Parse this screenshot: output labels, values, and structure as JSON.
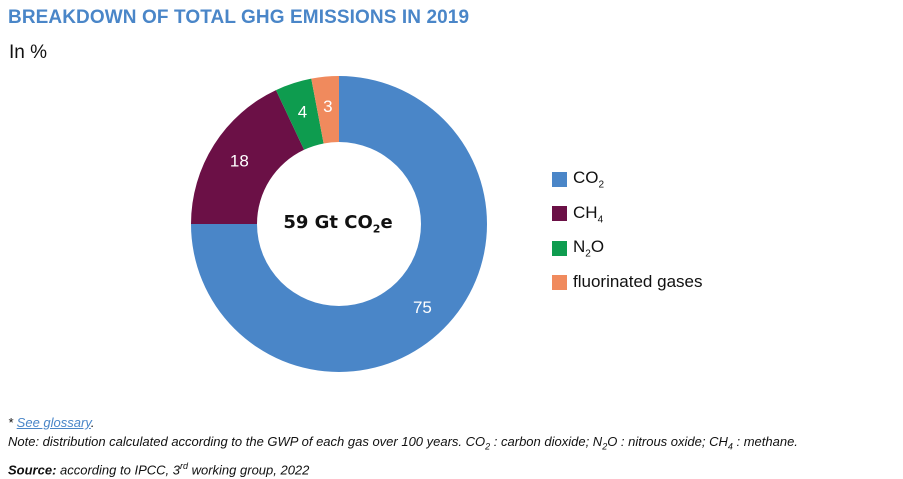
{
  "title": "BREAKDOWN OF TOTAL GHG EMISSIONS IN 2019",
  "unit": "In %",
  "center": {
    "value": "59 Gt CO",
    "sub": "2",
    "suffix": "e"
  },
  "chart_data": {
    "type": "pie",
    "donut": true,
    "title": "BREAKDOWN OF TOTAL GHG EMISSIONS IN 2019",
    "unit": "In %",
    "start_angle_deg": 0,
    "direction": "clockwise",
    "legend_position": "right",
    "slices": [
      {
        "key": "co2",
        "value": 75,
        "label": "75",
        "color": "#4a86c8"
      },
      {
        "key": "ch4",
        "value": 18,
        "label": "18",
        "color": "#6b1046"
      },
      {
        "key": "n2o",
        "value": 4,
        "label": "4",
        "color": "#0e9c4f"
      },
      {
        "key": "fgas",
        "value": 3,
        "label": "3",
        "color": "#f08a5d"
      }
    ]
  },
  "legend": [
    {
      "base": "CO",
      "sub": "2",
      "rest": "",
      "color": "#4a86c8"
    },
    {
      "base": "CH",
      "sub": "4",
      "rest": "",
      "color": "#6b1046"
    },
    {
      "base": "N",
      "sub": "2",
      "rest": "O",
      "color": "#0e9c4f"
    },
    {
      "base": "fluorinated gases",
      "sub": "",
      "rest": "",
      "color": "#f08a5d"
    }
  ],
  "footnotes": {
    "glossary_prefix": "* ",
    "glossary_link": "See glossary",
    "glossary_suffix": ".",
    "note": {
      "p1": "Note: distribution calculated according to the GWP of each gas over 100 years. CO",
      "s1": "2",
      "p2": " : carbon dioxide; N",
      "s2": "2",
      "p3": "O : nitrous oxide; CH",
      "s3": "4",
      "p4": " : methane."
    },
    "source_label": "Source:",
    "source_text1": " according to IPCC, 3",
    "source_sup": "rd",
    "source_text2": " working group, 2022"
  }
}
